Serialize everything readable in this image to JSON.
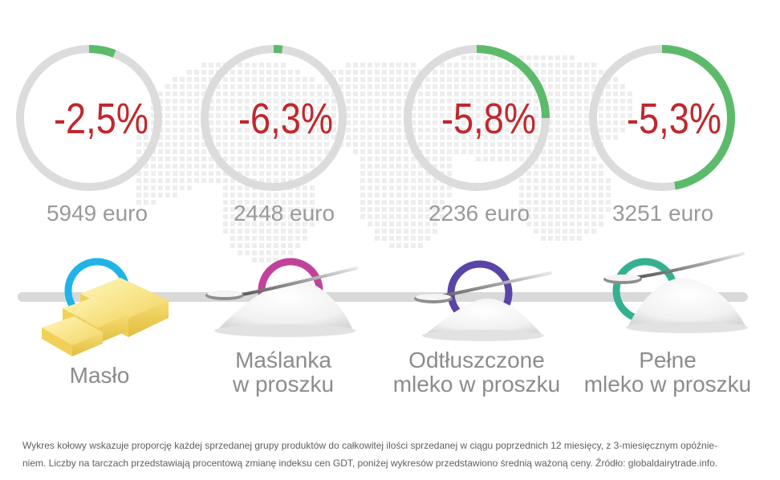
{
  "chart_data": {
    "type": "pie",
    "series": [
      {
        "category": "Masło",
        "share_percent": 6,
        "change_label": "-2,5%",
        "change_percent": -2.5,
        "price_label": "5949 euro",
        "price_eur": 5949,
        "ring_color": "#1fb3e9"
      },
      {
        "category": "Maślanka w proszku",
        "share_percent": 2,
        "change_label": "-6,3%",
        "change_percent": -6.3,
        "price_label": "2448 euro",
        "price_eur": 2448,
        "ring_color": "#c2429a"
      },
      {
        "category": "Odtłuszczone mleko w proszku",
        "share_percent": 25,
        "change_label": "-5,8%",
        "change_percent": -5.8,
        "price_label": "2236 euro",
        "price_eur": 2236,
        "ring_color": "#5a44a6"
      },
      {
        "category": "Pełne mleko w proszku",
        "share_percent": 47,
        "change_label": "-5,3%",
        "change_percent": -5.3,
        "price_label": "3251 euro",
        "price_eur": 3251,
        "ring_color": "#34b090"
      }
    ],
    "labels": [
      [
        "Masło"
      ],
      [
        "Maślanka",
        "w proszku"
      ],
      [
        "Odtłuszczone",
        "mleko w proszku"
      ],
      [
        "Pełne",
        "mleko w proszku"
      ]
    ]
  },
  "colors": {
    "donut_track": "#dcdcdc",
    "donut_fill": "#5cbb6a",
    "change_text": "#c1272d",
    "price_text": "#9a9a9a",
    "label_text": "#8c8c8c",
    "timeline_bar": "#d9d9d9"
  },
  "footnote": {
    "line1": "Wykres kołowy wskazuje proporcję każdej sprzedanej grupy produktów do całkowitej ilości sprzedanej w ciągu poprzednich 12 miesięcy, z 3-miesięcznym opóźnie-",
    "line2": "niem. Liczby na tarczach przedstawiają procentową zmianę indeksu cen GDT, poniżej wykresów przedstawiono średnią ważoną ceny. Źródło: globaldairytrade.info."
  }
}
